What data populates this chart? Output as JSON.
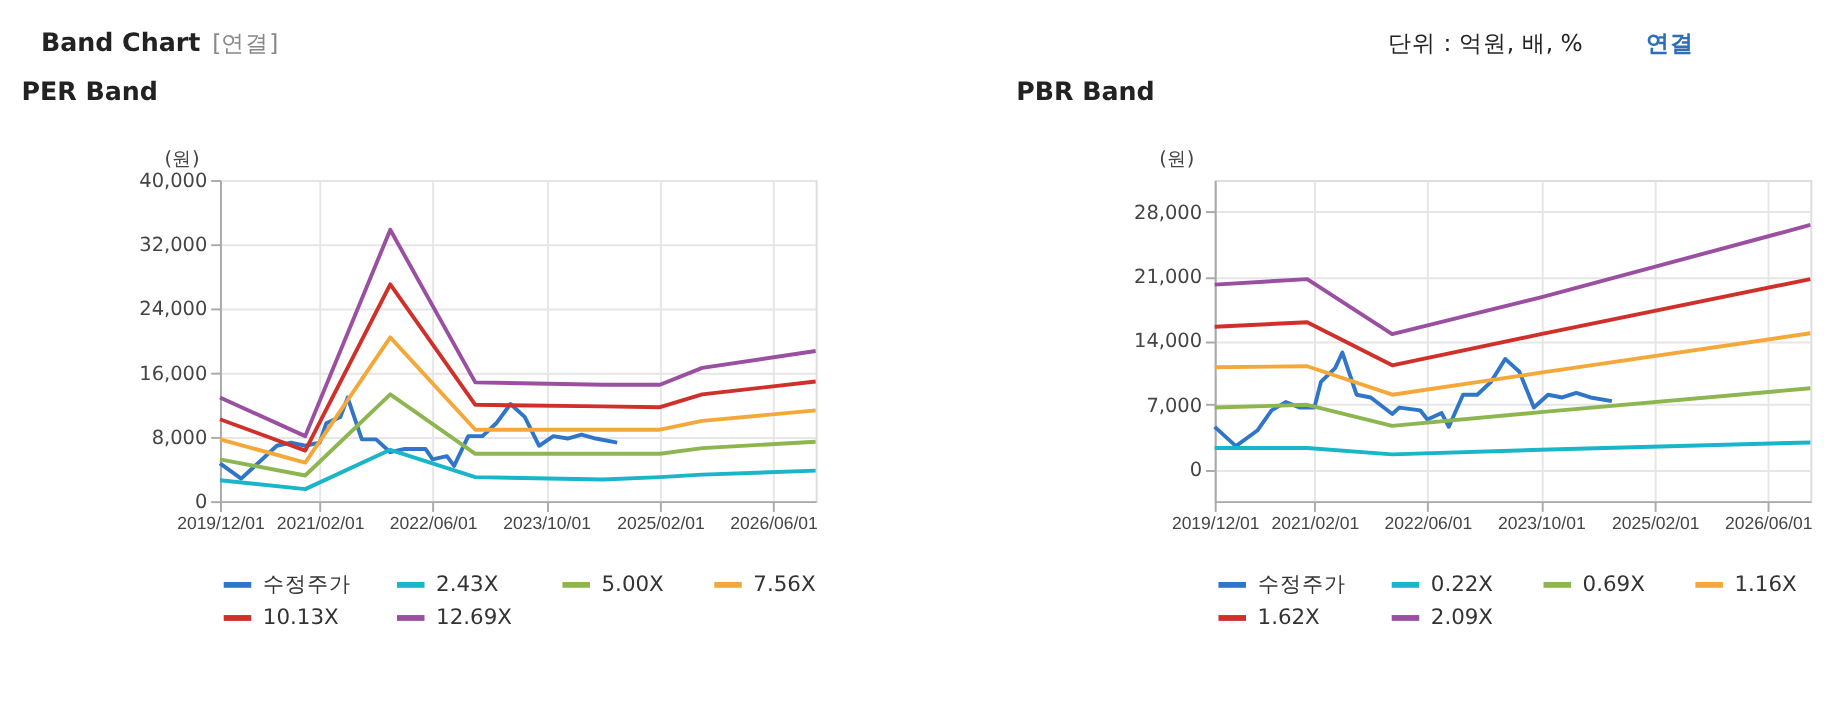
{
  "chart_data": [
    {
      "type": "line",
      "title": "PER Band",
      "ylabel": "(원)",
      "annotations": [
        "Band Chart",
        "[연결]",
        "단위 : 억원, 배, %",
        "연결"
      ],
      "x": [
        "2019-12-01",
        "2020-12-01",
        "2021-12-01",
        "2022-12-01",
        "2024-06-01",
        "2025-02-01",
        "2025-08-01",
        "2026-12-01"
      ],
      "xlim": [
        "2019-12-01",
        "2026-12-01"
      ],
      "xticks": [
        {
          "value": "2019-12-01",
          "label": "2019/12/01"
        },
        {
          "value": "2021-02-01",
          "label": "2021/02/01"
        },
        {
          "value": "2022-06-01",
          "label": "2022/06/01"
        },
        {
          "value": "2023-10-01",
          "label": "2023/10/01"
        },
        {
          "value": "2025-02-01",
          "label": "2025/02/01"
        },
        {
          "value": "2026-06-01",
          "label": "2026/06/01"
        }
      ],
      "ylim": [
        0,
        40000
      ],
      "yticks": [
        0,
        {
          "value": 8000,
          "label": "8,000"
        },
        {
          "value": 16000,
          "label": "16,000"
        },
        {
          "value": 24000,
          "label": "24,000"
        },
        {
          "value": 32000,
          "label": "32,000"
        },
        {
          "value": 40000,
          "label": "40,000"
        }
      ],
      "grid": true,
      "legend": "bottom",
      "marker": "none",
      "line_style": "solid",
      "series": [
        {
          "name": "수정주가",
          "color": "#2f75c8",
          "x": [
            "2019-12-01",
            "2020-03-01",
            "2020-08-01",
            "2020-10-01",
            "2020-12-01",
            "2021-02-01",
            "2021-03-01",
            "2021-05-01",
            "2021-06-01",
            "2021-08-01",
            "2021-10-01",
            "2021-12-01",
            "2022-02-01",
            "2022-05-01",
            "2022-06-01",
            "2022-08-01",
            "2022-09-01",
            "2022-11-01",
            "2023-01-01",
            "2023-03-01",
            "2023-05-01",
            "2023-07-01",
            "2023-09-01",
            "2023-11-01",
            "2024-01-01",
            "2024-03-01",
            "2024-05-01",
            "2024-08-01"
          ],
          "values": [
            4700,
            2800,
            6900,
            7300,
            6900,
            7300,
            9700,
            10500,
            12900,
            7700,
            7700,
            6100,
            6500,
            6500,
            5200,
            5600,
            4400,
            8100,
            8100,
            9700,
            12100,
            10500,
            6900,
            8100,
            7800,
            8300,
            7800,
            7300
          ]
        },
        {
          "name": "2.43X",
          "color": "#19b5c8",
          "values": [
            2600,
            1500,
            6400,
            3000,
            2700,
            3000,
            3300,
            3800
          ]
        },
        {
          "name": "5.00X",
          "color": "#8db650",
          "values": [
            5200,
            3200,
            13300,
            5900,
            5900,
            5900,
            6600,
            7400
          ]
        },
        {
          "name": "7.56X",
          "color": "#f5a83a",
          "values": [
            7700,
            4800,
            20400,
            8900,
            8900,
            8900,
            10000,
            11300
          ]
        },
        {
          "name": "10.13X",
          "color": "#d0302a",
          "values": [
            10200,
            6300,
            27000,
            12000,
            11800,
            11700,
            13300,
            14900
          ]
        },
        {
          "name": "12.69X",
          "color": "#9b4fa0",
          "values": [
            12900,
            8100,
            33800,
            14800,
            14500,
            14500,
            16600,
            18700
          ]
        }
      ]
    },
    {
      "type": "line",
      "title": "PBR Band",
      "ylabel": "(원)",
      "x": [
        "2019-12-01",
        "2021-01-01",
        "2022-01-01",
        "2023-10-01",
        "2026-12-01"
      ],
      "xlim": [
        "2019-12-01",
        "2026-12-01"
      ],
      "xticks": [
        {
          "value": "2019-12-01",
          "label": "2019/12/01"
        },
        {
          "value": "2021-02-01",
          "label": "2021/02/01"
        },
        {
          "value": "2022-06-01",
          "label": "2022/06/01"
        },
        {
          "value": "2023-10-01",
          "label": "2023/10/01"
        },
        {
          "value": "2025-02-01",
          "label": "2025/02/01"
        },
        {
          "value": "2026-06-01",
          "label": "2026/06/01"
        }
      ],
      "ylim": [
        -3500,
        31500
      ],
      "yticks": [
        0,
        {
          "value": 7000,
          "label": "7,000"
        },
        {
          "value": 14000,
          "label": "14,000"
        },
        {
          "value": 21000,
          "label": "21,000"
        },
        {
          "value": 28000,
          "label": "28,000"
        }
      ],
      "grid": true,
      "legend": "bottom",
      "marker": "none",
      "line_style": "solid",
      "series": [
        {
          "name": "수정주가",
          "color": "#2f75c8",
          "x": [
            "2019-12-01",
            "2020-03-01",
            "2020-06-01",
            "2020-08-01",
            "2020-10-01",
            "2020-12-01",
            "2021-02-01",
            "2021-03-01",
            "2021-05-01",
            "2021-06-01",
            "2021-08-01",
            "2021-10-01",
            "2022-01-01",
            "2022-02-01",
            "2022-05-01",
            "2022-06-01",
            "2022-08-01",
            "2022-09-01",
            "2022-11-01",
            "2023-01-01",
            "2023-03-01",
            "2023-05-01",
            "2023-07-01",
            "2023-09-01",
            "2023-11-01",
            "2024-01-01",
            "2024-03-01",
            "2024-05-01",
            "2024-08-01"
          ],
          "values": [
            4600,
            2500,
            4200,
            6400,
            7300,
            6700,
            6700,
            9500,
            11000,
            12700,
            8100,
            7800,
            6000,
            6700,
            6400,
            5400,
            6100,
            4600,
            8100,
            8100,
            9500,
            12000,
            10600,
            6700,
            8100,
            7800,
            8300,
            7800,
            7400
          ]
        },
        {
          "name": "0.22X",
          "color": "#19b5c8",
          "values": [
            2300,
            2300,
            1600,
            2100,
            2900
          ]
        },
        {
          "name": "0.69X",
          "color": "#8db650",
          "values": [
            6700,
            7000,
            4700,
            6200,
            8800
          ]
        },
        {
          "name": "1.16X",
          "color": "#f5a83a",
          "values": [
            11100,
            11200,
            8100,
            10500,
            14800
          ]
        },
        {
          "name": "1.62X",
          "color": "#d0302a",
          "values": [
            15500,
            16000,
            11300,
            14700,
            20700
          ]
        },
        {
          "name": "2.09X",
          "color": "#9b4fa0",
          "values": [
            20100,
            20700,
            14700,
            18700,
            26600
          ]
        }
      ]
    }
  ]
}
